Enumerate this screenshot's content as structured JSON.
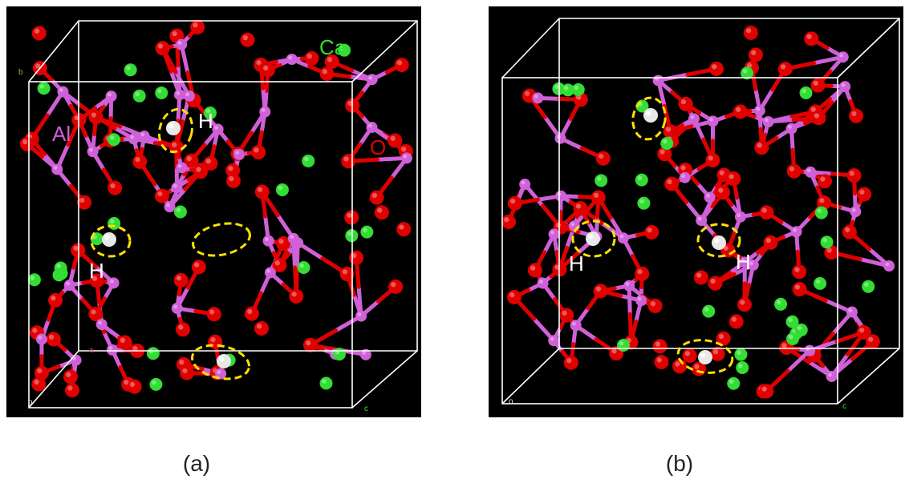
{
  "figure": {
    "captions": {
      "a": "(a)",
      "b": "(b)"
    }
  },
  "colors": {
    "background": "#000000",
    "calcium": "#33dd33",
    "oxygen": "#e00000",
    "aluminum": "#d060d8",
    "hydrogen": "#e8e8e8",
    "highlight": "#ffe000",
    "cell_edges": "#ffffff"
  },
  "panel_a": {
    "labels": {
      "ca": "Ca",
      "al": "Al",
      "o": "O",
      "h1": "H",
      "h2": "H"
    },
    "axes": {
      "b": "b",
      "a": "a",
      "o": "o",
      "c": "c"
    }
  },
  "panel_b": {
    "labels": {
      "h1": "H",
      "h2": "H"
    },
    "axes": {
      "o": "o",
      "c": "c"
    }
  },
  "atoms": [
    "calcium",
    "oxygen",
    "aluminum",
    "hydrogen"
  ]
}
